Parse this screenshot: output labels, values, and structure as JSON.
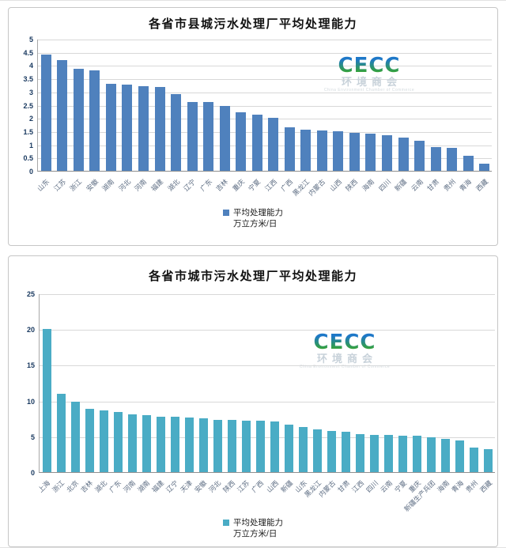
{
  "watermark": {
    "logo_text": "CECC",
    "cn_text": "环境商会",
    "en_text": "China Environment Chamber of Commerce"
  },
  "chart_data": [
    {
      "type": "bar",
      "title": "各省市县城污水处理厂平均处理能力",
      "legend_label": "平均处理能力",
      "legend_unit": "万立方米/日",
      "bar_color": "#4f81bd",
      "ylim": [
        0,
        5
      ],
      "ytick_step": 0.5,
      "grid": true,
      "legend_position": "bottom",
      "categories": [
        "山东",
        "江苏",
        "浙江",
        "安徽",
        "湖南",
        "河北",
        "河南",
        "福建",
        "湖北",
        "辽宁",
        "广东",
        "吉林",
        "重庆",
        "宁夏",
        "江西",
        "广西",
        "黑龙江",
        "内蒙古",
        "山西",
        "陕西",
        "海南",
        "四川",
        "新疆",
        "云南",
        "甘肃",
        "贵州",
        "青海",
        "西藏"
      ],
      "values": [
        4.4,
        4.2,
        3.85,
        3.8,
        3.3,
        3.25,
        3.2,
        3.18,
        2.9,
        2.62,
        2.6,
        2.45,
        2.22,
        2.12,
        2.0,
        1.66,
        1.56,
        1.52,
        1.5,
        1.45,
        1.42,
        1.35,
        1.27,
        1.13,
        0.9,
        0.87,
        0.58,
        0.26
      ]
    },
    {
      "type": "bar",
      "title": "各省市城市污水处理厂平均处理能力",
      "legend_label": "平均处理能力",
      "legend_unit": "万立方米/日",
      "bar_color": "#4aacc5",
      "ylim": [
        0,
        25
      ],
      "ytick_step": 5,
      "grid": true,
      "legend_position": "bottom",
      "categories": [
        "上海",
        "浙江",
        "北京",
        "吉林",
        "湖北",
        "广东",
        "河南",
        "湖南",
        "福建",
        "辽宁",
        "天津",
        "安徽",
        "河北",
        "陕西",
        "江苏",
        "广西",
        "山西",
        "新疆",
        "山东",
        "黑龙江",
        "内蒙古",
        "甘肃",
        "江西",
        "四川",
        "云南",
        "宁夏",
        "重庆",
        "新疆生产兵团",
        "海南",
        "青海",
        "贵州",
        "西藏"
      ],
      "values": [
        20.0,
        11.0,
        9.9,
        8.9,
        8.6,
        8.4,
        8.1,
        8.0,
        7.8,
        7.7,
        7.6,
        7.5,
        7.35,
        7.25,
        7.2,
        7.15,
        7.1,
        6.6,
        6.3,
        6.0,
        5.8,
        5.6,
        5.3,
        5.25,
        5.2,
        5.1,
        5.1,
        4.85,
        4.7,
        4.4,
        3.4,
        3.2
      ]
    }
  ]
}
